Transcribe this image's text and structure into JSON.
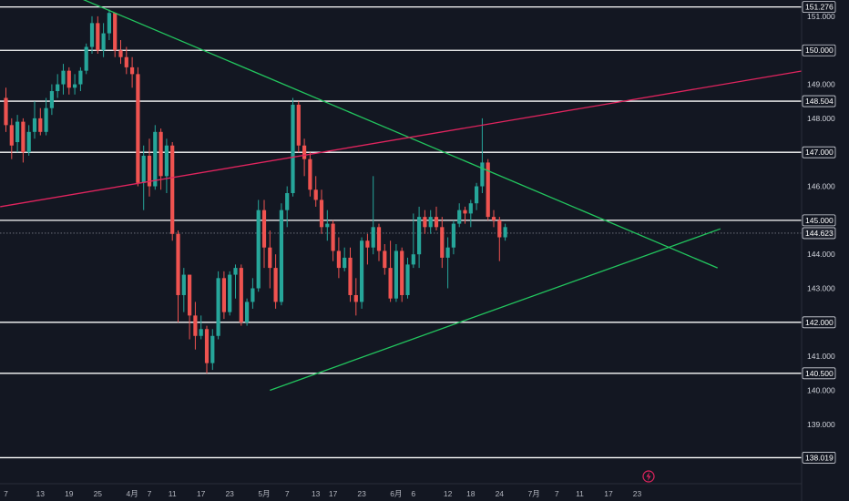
{
  "chart_data": {
    "type": "candlestick",
    "ylim": [
      137.28,
      151.48
    ],
    "colors": {
      "up": "#26a69a",
      "down": "#ef5350",
      "hline": "#ffffff",
      "green_line": "#22c55e",
      "pink_line": "#e0245e",
      "background": "#131722"
    },
    "price_levels": [
      151.276,
      150.0,
      148.504,
      147.0,
      145.0,
      142.0,
      140.5,
      138.019
    ],
    "current_price": "144.623",
    "current_price_value": 144.623,
    "y_ticks": [
      "151.000",
      "149.000",
      "148.000",
      "146.000",
      "144.000",
      "143.000",
      "141.000",
      "140.000",
      "139.000"
    ],
    "y_tick_values": [
      151,
      149,
      148,
      146,
      144,
      143,
      141,
      140,
      139
    ],
    "x_ticks": [
      "7",
      "13",
      "19",
      "25",
      "4月",
      "7",
      "11",
      "17",
      "23",
      "5月",
      "7",
      "13",
      "17",
      "23",
      "6月",
      "6",
      "12",
      "18",
      "24",
      "7月",
      "7",
      "11",
      "17",
      "23"
    ],
    "x_tick_index": [
      0,
      6,
      11,
      16,
      22,
      25,
      29,
      34,
      39,
      45,
      49,
      54,
      57,
      62,
      68,
      71,
      77,
      81,
      86,
      92,
      96,
      100,
      105,
      110
    ],
    "candles": [
      [
        148.6,
        148.9,
        147.6,
        147.8
      ],
      [
        147.8,
        148.0,
        146.8,
        147.2
      ],
      [
        147.3,
        148.1,
        147.0,
        147.9
      ],
      [
        147.9,
        148.0,
        146.7,
        147.0
      ],
      [
        147.0,
        147.8,
        146.9,
        147.6
      ],
      [
        147.6,
        148.5,
        147.4,
        148.0
      ],
      [
        148.0,
        148.3,
        147.5,
        147.6
      ],
      [
        147.6,
        148.6,
        147.5,
        148.3
      ],
      [
        148.3,
        149.0,
        148.1,
        148.8
      ],
      [
        148.8,
        149.3,
        148.6,
        149.0
      ],
      [
        149.0,
        149.6,
        148.7,
        149.4
      ],
      [
        149.4,
        149.5,
        148.7,
        148.9
      ],
      [
        148.9,
        149.3,
        148.7,
        149.0
      ],
      [
        149.0,
        149.5,
        148.8,
        149.4
      ],
      [
        149.4,
        150.2,
        149.3,
        150.1
      ],
      [
        150.1,
        151.0,
        149.9,
        150.8
      ],
      [
        150.8,
        151.0,
        149.9,
        150.0
      ],
      [
        150.0,
        150.8,
        149.8,
        150.5
      ],
      [
        150.5,
        151.2,
        150.3,
        151.1
      ],
      [
        151.1,
        151.1,
        149.8,
        150.0
      ],
      [
        150.0,
        150.3,
        149.6,
        149.8
      ],
      [
        149.8,
        150.1,
        149.3,
        149.5
      ],
      [
        149.5,
        149.8,
        148.9,
        149.3
      ],
      [
        149.3,
        149.5,
        146.0,
        146.1
      ],
      [
        146.1,
        147.2,
        145.3,
        146.9
      ],
      [
        146.9,
        147.4,
        145.7,
        146.0
      ],
      [
        146.0,
        147.8,
        145.9,
        147.6
      ],
      [
        147.6,
        147.7,
        145.9,
        146.3
      ],
      [
        146.3,
        147.4,
        145.8,
        147.2
      ],
      [
        147.2,
        147.3,
        144.4,
        144.6
      ],
      [
        144.6,
        144.7,
        142.0,
        142.8
      ],
      [
        142.8,
        143.6,
        142.3,
        143.4
      ],
      [
        143.4,
        143.4,
        141.5,
        142.2
      ],
      [
        142.2,
        142.6,
        141.2,
        141.6
      ],
      [
        141.6,
        142.2,
        141.5,
        141.8
      ],
      [
        141.8,
        141.9,
        140.5,
        140.8
      ],
      [
        140.8,
        141.8,
        140.6,
        141.6
      ],
      [
        141.6,
        143.5,
        141.5,
        143.3
      ],
      [
        143.3,
        143.5,
        142.1,
        142.3
      ],
      [
        142.3,
        143.5,
        142.2,
        143.4
      ],
      [
        143.4,
        143.7,
        142.7,
        143.6
      ],
      [
        143.6,
        143.7,
        141.9,
        142.0
      ],
      [
        142.0,
        142.7,
        141.9,
        142.6
      ],
      [
        142.6,
        143.3,
        142.4,
        143.0
      ],
      [
        143.0,
        145.6,
        142.9,
        145.3
      ],
      [
        145.3,
        145.6,
        143.6,
        144.2
      ],
      [
        144.2,
        144.7,
        143.0,
        143.6
      ],
      [
        143.6,
        144.0,
        142.4,
        142.6
      ],
      [
        142.6,
        145.5,
        142.5,
        145.3
      ],
      [
        145.3,
        146.0,
        144.8,
        145.8
      ],
      [
        145.8,
        148.6,
        145.7,
        148.4
      ],
      [
        148.4,
        148.5,
        147.0,
        147.2
      ],
      [
        147.2,
        147.4,
        146.3,
        146.8
      ],
      [
        146.8,
        147.0,
        145.7,
        145.9
      ],
      [
        145.9,
        146.3,
        145.4,
        145.6
      ],
      [
        145.6,
        145.9,
        144.6,
        144.8
      ],
      [
        144.8,
        145.3,
        144.4,
        144.9
      ],
      [
        144.9,
        145.0,
        143.8,
        144.1
      ],
      [
        144.1,
        144.5,
        143.3,
        143.6
      ],
      [
        143.6,
        144.2,
        143.5,
        143.9
      ],
      [
        143.9,
        144.2,
        142.6,
        142.8
      ],
      [
        142.8,
        143.3,
        142.2,
        142.6
      ],
      [
        142.6,
        144.5,
        142.4,
        144.4
      ],
      [
        144.4,
        144.6,
        143.7,
        144.2
      ],
      [
        144.2,
        146.3,
        144.0,
        144.8
      ],
      [
        144.8,
        144.9,
        143.8,
        144.1
      ],
      [
        144.1,
        144.3,
        143.4,
        143.6
      ],
      [
        143.6,
        144.4,
        142.6,
        142.7
      ],
      [
        142.7,
        144.3,
        142.6,
        144.1
      ],
      [
        144.1,
        144.2,
        142.6,
        142.8
      ],
      [
        142.8,
        143.9,
        142.7,
        143.7
      ],
      [
        143.7,
        145.2,
        143.6,
        144.0
      ],
      [
        144.0,
        145.4,
        143.6,
        145.1
      ],
      [
        145.1,
        145.3,
        144.6,
        144.8
      ],
      [
        144.8,
        145.3,
        144.6,
        145.1
      ],
      [
        145.1,
        145.4,
        144.7,
        144.8
      ],
      [
        144.8,
        145.1,
        143.6,
        143.9
      ],
      [
        143.9,
        144.5,
        143.0,
        144.2
      ],
      [
        144.2,
        145.0,
        144.0,
        144.9
      ],
      [
        144.9,
        145.5,
        144.8,
        145.3
      ],
      [
        145.3,
        145.4,
        144.9,
        145.2
      ],
      [
        145.2,
        145.6,
        144.8,
        145.5
      ],
      [
        145.5,
        146.1,
        145.3,
        146.0
      ],
      [
        146.0,
        148.0,
        145.8,
        146.7
      ],
      [
        146.7,
        146.8,
        145.0,
        145.1
      ],
      [
        145.1,
        145.3,
        144.8,
        145.0
      ],
      [
        145.0,
        145.1,
        143.8,
        144.5
      ],
      [
        144.5,
        144.9,
        144.4,
        144.8
      ]
    ]
  }
}
